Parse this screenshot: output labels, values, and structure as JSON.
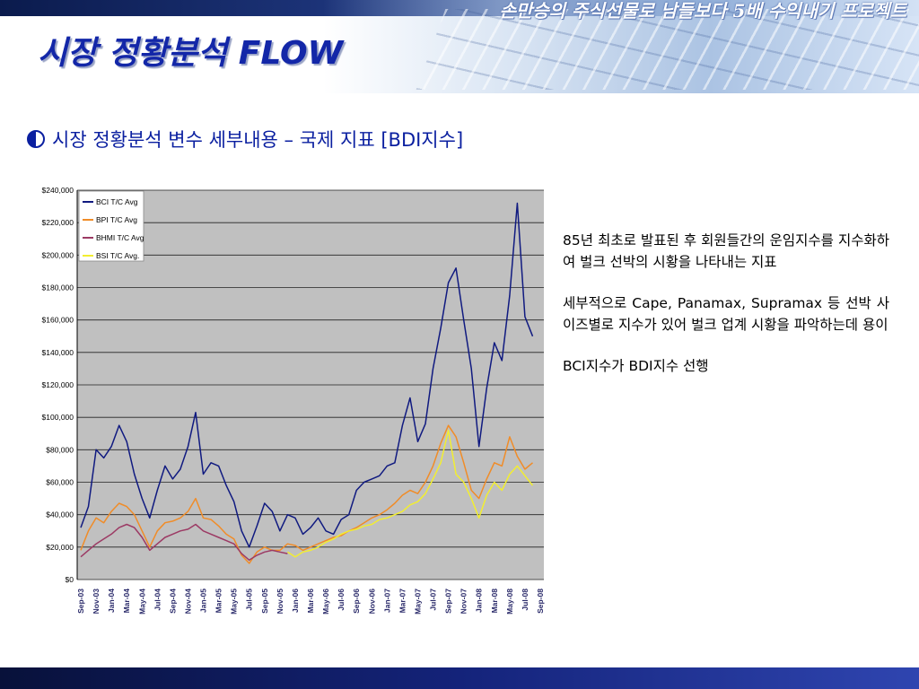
{
  "header": {
    "project_title": "손만승의 주식선물로 남들보다 5배 수익내기 프로젝트",
    "page_title": "시장 정황분석 FLOW"
  },
  "subtitle": "시장 정황분석 변수 세부내용 – 국제 지표 [BDI지수]",
  "description": {
    "paragraph_1": "85년 최초로 발표된 후 회원들간의 운임지수를 지수화하여 벌크 선박의 시황을 나타내는 지표",
    "paragraph_2": "세부적으로 Cape, Panamax, Supramax 등 선박 사이즈별로 지수가 있어 벌크 업계 시황을 파악하는데 용이",
    "paragraph_3": "BCI지수가 BDI지수 선행"
  },
  "colors": {
    "title_blue": "#1327a8",
    "plot_bg": "#c0c0c0",
    "bci": "#101a80",
    "bpi": "#f08c28",
    "bhmi": "#9c3a64",
    "bsi": "#f2ee30"
  },
  "chart_data": {
    "type": "line",
    "ylim": [
      0,
      240000
    ],
    "y_ticks": [
      "$0",
      "$20,000",
      "$40,000",
      "$60,000",
      "$80,000",
      "$100,000",
      "$120,000",
      "$140,000",
      "$160,000",
      "$180,000",
      "$200,000",
      "$220,000",
      "$240,000"
    ],
    "x_labels": [
      "Sep-03",
      "Nov-03",
      "Jan-04",
      "Mar-04",
      "May-04",
      "Jul-04",
      "Sep-04",
      "Nov-04",
      "Jan-05",
      "Mar-05",
      "May-05",
      "Jul-05",
      "Sep-05",
      "Nov-05",
      "Jan-06",
      "Mar-06",
      "May-06",
      "Jul-06",
      "Sep-06",
      "Nov-06",
      "Jan-07",
      "Mar-07",
      "May-07",
      "Jul-07",
      "Sep-07",
      "Nov-07",
      "Jan-08",
      "Mar-08",
      "May-08",
      "Jul-08",
      "Sep-08"
    ],
    "legend_position": "top-left",
    "grid": true,
    "series": [
      {
        "name": "BCI T/C Avg",
        "color": "#101a80",
        "points": [
          [
            0,
            32000
          ],
          [
            0.5,
            45000
          ],
          [
            1,
            80000
          ],
          [
            1.5,
            75000
          ],
          [
            2,
            82000
          ],
          [
            2.5,
            95000
          ],
          [
            3,
            85000
          ],
          [
            3.5,
            65000
          ],
          [
            4,
            50000
          ],
          [
            4.5,
            38000
          ],
          [
            5,
            55000
          ],
          [
            5.5,
            70000
          ],
          [
            6,
            62000
          ],
          [
            6.5,
            68000
          ],
          [
            7,
            82000
          ],
          [
            7.5,
            103000
          ],
          [
            8,
            65000
          ],
          [
            8.5,
            72000
          ],
          [
            9,
            70000
          ],
          [
            9.5,
            58000
          ],
          [
            10,
            48000
          ],
          [
            10.5,
            30000
          ],
          [
            11,
            20000
          ],
          [
            11.5,
            33000
          ],
          [
            12,
            47000
          ],
          [
            12.5,
            42000
          ],
          [
            13,
            30000
          ],
          [
            13.5,
            40000
          ],
          [
            14,
            38000
          ],
          [
            14.5,
            28000
          ],
          [
            15,
            32000
          ],
          [
            15.5,
            38000
          ],
          [
            16,
            30000
          ],
          [
            16.5,
            28000
          ],
          [
            17,
            37000
          ],
          [
            17.5,
            40000
          ],
          [
            18,
            55000
          ],
          [
            18.5,
            60000
          ],
          [
            19,
            62000
          ],
          [
            19.5,
            64000
          ],
          [
            20,
            70000
          ],
          [
            20.5,
            72000
          ],
          [
            21,
            95000
          ],
          [
            21.5,
            112000
          ],
          [
            22,
            85000
          ],
          [
            22.5,
            96000
          ],
          [
            23,
            130000
          ],
          [
            23.5,
            155000
          ],
          [
            24,
            183000
          ],
          [
            24.5,
            192000
          ],
          [
            25,
            160000
          ],
          [
            25.5,
            130000
          ],
          [
            26,
            82000
          ],
          [
            26.5,
            118000
          ],
          [
            27,
            146000
          ],
          [
            27.5,
            135000
          ],
          [
            28,
            175000
          ],
          [
            28.5,
            232000
          ],
          [
            29,
            162000
          ],
          [
            29.5,
            150000
          ]
        ]
      },
      {
        "name": "BPI T/C Avg",
        "color": "#f08c28",
        "points": [
          [
            0,
            18000
          ],
          [
            0.5,
            30000
          ],
          [
            1,
            38000
          ],
          [
            1.5,
            35000
          ],
          [
            2,
            42000
          ],
          [
            2.5,
            47000
          ],
          [
            3,
            45000
          ],
          [
            3.5,
            40000
          ],
          [
            4,
            30000
          ],
          [
            4.5,
            20000
          ],
          [
            5,
            30000
          ],
          [
            5.5,
            35000
          ],
          [
            6,
            36000
          ],
          [
            6.5,
            38000
          ],
          [
            7,
            42000
          ],
          [
            7.5,
            50000
          ],
          [
            8,
            38000
          ],
          [
            8.5,
            37000
          ],
          [
            9,
            33000
          ],
          [
            9.5,
            28000
          ],
          [
            10,
            25000
          ],
          [
            10.5,
            15000
          ],
          [
            11,
            10000
          ],
          [
            11.5,
            17000
          ],
          [
            12,
            20000
          ],
          [
            12.5,
            18000
          ],
          [
            13,
            18000
          ],
          [
            13.5,
            22000
          ],
          [
            14,
            21000
          ],
          [
            14.5,
            18000
          ],
          [
            15,
            20000
          ],
          [
            15.5,
            22000
          ],
          [
            16,
            24000
          ],
          [
            16.5,
            26000
          ],
          [
            17,
            27000
          ],
          [
            17.5,
            30000
          ],
          [
            18,
            32000
          ],
          [
            18.5,
            35000
          ],
          [
            19,
            38000
          ],
          [
            19.5,
            40000
          ],
          [
            20,
            43000
          ],
          [
            20.5,
            47000
          ],
          [
            21,
            52000
          ],
          [
            21.5,
            55000
          ],
          [
            22,
            53000
          ],
          [
            22.5,
            60000
          ],
          [
            23,
            70000
          ],
          [
            23.5,
            84000
          ],
          [
            24,
            95000
          ],
          [
            24.5,
            88000
          ],
          [
            25,
            72000
          ],
          [
            25.5,
            55000
          ],
          [
            26,
            50000
          ],
          [
            26.5,
            62000
          ],
          [
            27,
            72000
          ],
          [
            27.5,
            70000
          ],
          [
            28,
            88000
          ],
          [
            28.5,
            76000
          ],
          [
            29,
            68000
          ],
          [
            29.5,
            72000
          ]
        ]
      },
      {
        "name": "BHMI T/C Avg",
        "color": "#9c3a64",
        "points": [
          [
            0,
            14000
          ],
          [
            0.5,
            18000
          ],
          [
            1,
            22000
          ],
          [
            1.5,
            25000
          ],
          [
            2,
            28000
          ],
          [
            2.5,
            32000
          ],
          [
            3,
            34000
          ],
          [
            3.5,
            32000
          ],
          [
            4,
            26000
          ],
          [
            4.5,
            18000
          ],
          [
            5,
            22000
          ],
          [
            5.5,
            26000
          ],
          [
            6,
            28000
          ],
          [
            6.5,
            30000
          ],
          [
            7,
            31000
          ],
          [
            7.5,
            34000
          ],
          [
            8,
            30000
          ],
          [
            8.5,
            28000
          ],
          [
            9,
            26000
          ],
          [
            9.5,
            24000
          ],
          [
            10,
            22000
          ],
          [
            10.5,
            16000
          ],
          [
            11,
            12000
          ],
          [
            11.5,
            15000
          ],
          [
            12,
            17000
          ],
          [
            12.5,
            18000
          ],
          [
            13,
            17000
          ],
          [
            13.5,
            16000
          ]
        ]
      },
      {
        "name": "BSI T/C Avg.",
        "color": "#f2ee30",
        "points": [
          [
            13.5,
            17000
          ],
          [
            14,
            14000
          ],
          [
            14.5,
            17000
          ],
          [
            15,
            18000
          ],
          [
            15.5,
            20000
          ],
          [
            16,
            23000
          ],
          [
            16.5,
            25000
          ],
          [
            17,
            28000
          ],
          [
            17.5,
            30000
          ],
          [
            18,
            31000
          ],
          [
            18.5,
            33000
          ],
          [
            19,
            34000
          ],
          [
            19.5,
            37000
          ],
          [
            20,
            38000
          ],
          [
            20.5,
            40000
          ],
          [
            21,
            42000
          ],
          [
            21.5,
            46000
          ],
          [
            22,
            48000
          ],
          [
            22.5,
            53000
          ],
          [
            23,
            62000
          ],
          [
            23.5,
            72000
          ],
          [
            24,
            92000
          ],
          [
            24.5,
            65000
          ],
          [
            25,
            60000
          ],
          [
            25.5,
            50000
          ],
          [
            26,
            38000
          ],
          [
            26.5,
            52000
          ],
          [
            27,
            60000
          ],
          [
            27.5,
            55000
          ],
          [
            28,
            65000
          ],
          [
            28.5,
            70000
          ],
          [
            29,
            64000
          ],
          [
            29.5,
            58000
          ]
        ]
      }
    ]
  }
}
